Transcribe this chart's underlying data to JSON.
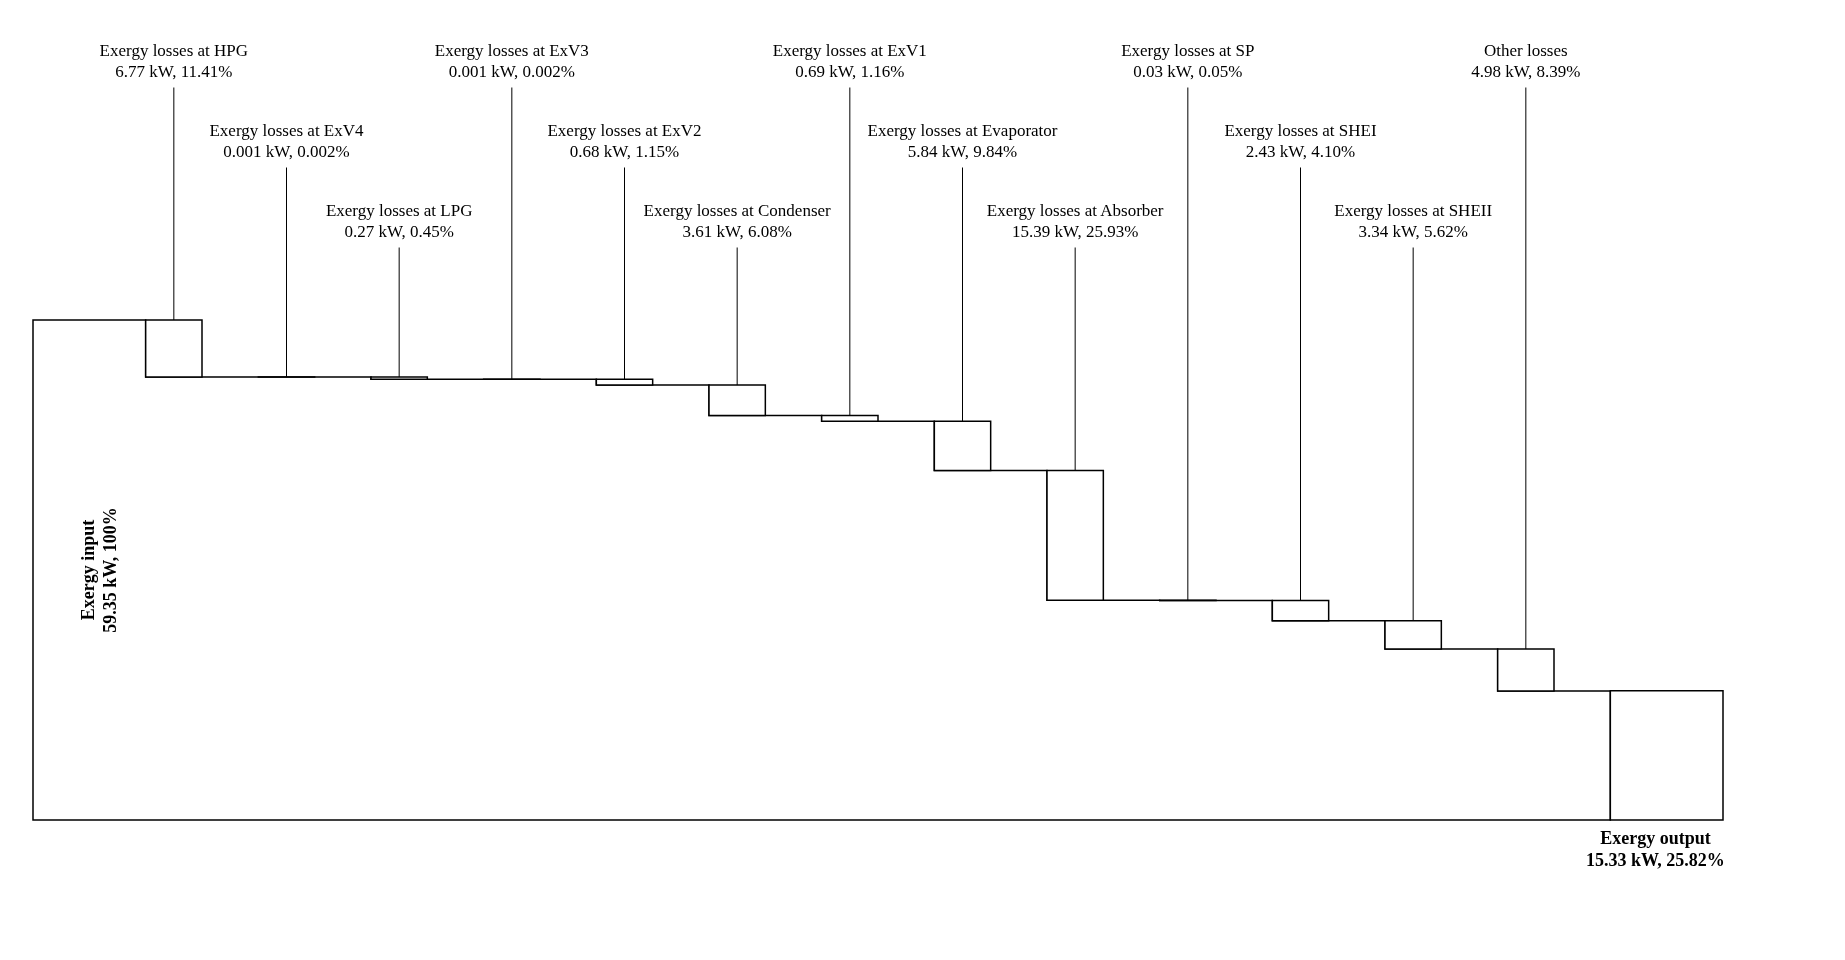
{
  "chart_data": {
    "type": "other",
    "categories": [
      "Exergy input",
      "Exergy losses at HPG",
      "Exergy losses at ExV4",
      "Exergy losses at LPG",
      "Exergy losses at ExV3",
      "Exergy losses at ExV2",
      "Exergy losses at Condenser",
      "Exergy losses at ExV1",
      "Exergy losses at Evaporator",
      "Exergy losses at Absorber",
      "Exergy losses at SP",
      "Exergy losses at SHEI",
      "Exergy losses at SHEII",
      "Other losses",
      "Exergy output"
    ],
    "values": [
      59.35,
      6.77,
      0.001,
      0.27,
      0.001,
      0.68,
      3.61,
      0.69,
      5.84,
      15.39,
      0.03,
      2.43,
      3.34,
      4.98,
      15.33
    ],
    "value_labels": [
      "59.35 kW, 100%",
      "6.77 kW, 11.41%",
      "0.001 kW, 0.002%",
      "0.27 kW, 0.45%",
      "0.001 kW, 0.002%",
      "0.68 kW, 1.15%",
      "3.61 kW, 6.08%",
      "0.69 kW, 1.16%",
      "5.84 kW, 9.84%",
      "15.39 kW, 25.93%",
      "0.03 kW, 0.05%",
      "2.43 kW, 4.10%",
      "3.34 kW, 5.62%",
      "4.98 kW, 8.39%",
      "15.33 kW, 25.82%"
    ]
  }
}
